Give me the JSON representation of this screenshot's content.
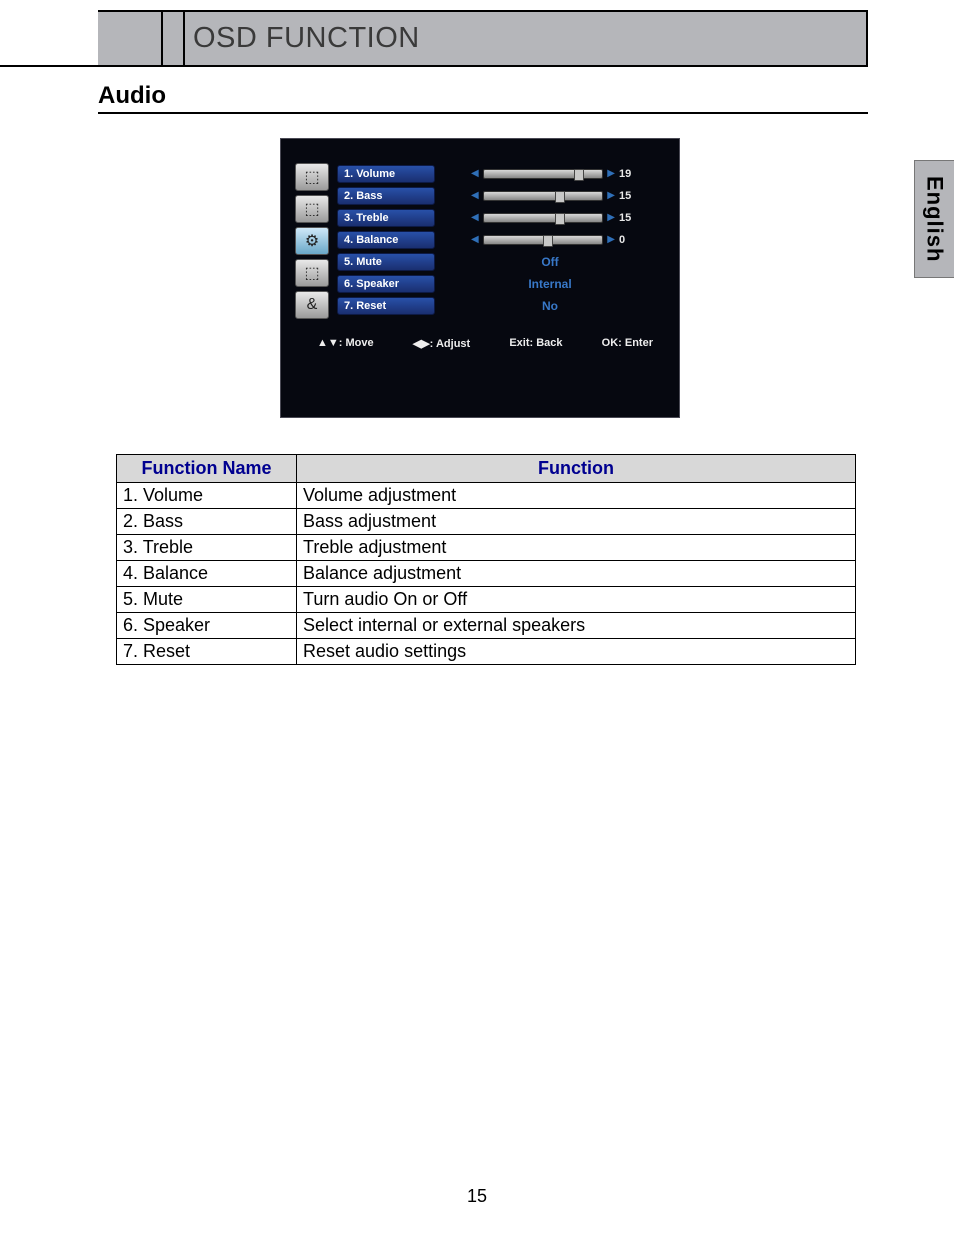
{
  "header": {
    "title": "OSD FUNCTION"
  },
  "section_title": "Audio",
  "lang_tab": "English",
  "page_number": "15",
  "osd": {
    "icons": [
      "⬚",
      "⬚",
      "⚙",
      "⬚",
      "&"
    ],
    "rows": [
      {
        "label": "1. Volume",
        "kind": "slider",
        "value": "19",
        "thumb_pct": 76
      },
      {
        "label": "2. Bass",
        "kind": "slider",
        "value": "15",
        "thumb_pct": 60
      },
      {
        "label": "3. Treble",
        "kind": "slider",
        "value": "15",
        "thumb_pct": 60
      },
      {
        "label": "4. Balance",
        "kind": "slider",
        "value": "0",
        "thumb_pct": 50
      },
      {
        "label": "5. Mute",
        "kind": "text",
        "value": "Off"
      },
      {
        "label": "6. Speaker",
        "kind": "text",
        "value": "Internal"
      },
      {
        "label": "7. Reset",
        "kind": "text",
        "value": "No"
      }
    ],
    "footer": {
      "move": "▲▼: Move",
      "adjust": "◀▶: Adjust",
      "exit": "Exit: Back",
      "ok": "OK: Enter"
    }
  },
  "table": {
    "headers": [
      "Function Name",
      "Function"
    ],
    "rows": [
      [
        "1. Volume",
        "Volume adjustment"
      ],
      [
        "2. Bass",
        "Bass adjustment"
      ],
      [
        "3. Treble",
        "Treble adjustment"
      ],
      [
        "4. Balance",
        "Balance adjustment"
      ],
      [
        "5. Mute",
        "Turn audio On or Off"
      ],
      [
        "6. Speaker",
        "Select internal or external speakers"
      ],
      [
        "7. Reset",
        "Reset audio settings"
      ]
    ]
  },
  "colors": {
    "header_bg": "#b5b6ba",
    "table_header_bg": "#d8d8d8",
    "table_header_fg": "#000090",
    "osd_bg": "#060810",
    "osd_label_bg": "#1a2f70",
    "osd_value_fg": "#3878c8"
  }
}
